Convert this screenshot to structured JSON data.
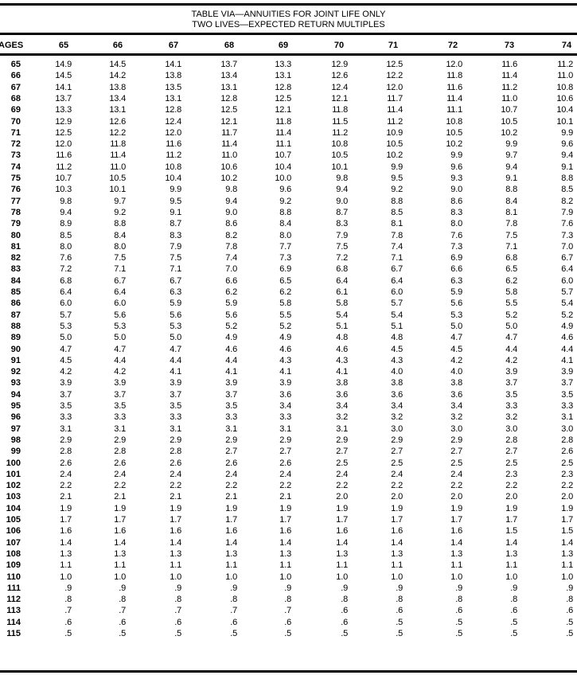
{
  "title": {
    "line1": "TABLE VIA—ANNUITIES FOR JOINT LIFE ONLY",
    "line2": "TWO LIVES—EXPECTED RETURN MULTIPLES"
  },
  "header": {
    "ages_label": "AGES",
    "columns": [
      "65",
      "66",
      "67",
      "68",
      "69",
      "70",
      "71",
      "72",
      "73",
      "74"
    ]
  },
  "rows": [
    {
      "age": "65",
      "values": [
        "14.9",
        "14.5",
        "14.1",
        "13.7",
        "13.3",
        "12.9",
        "12.5",
        "12.0",
        "11.6",
        "11.2"
      ]
    },
    {
      "age": "66",
      "values": [
        "14.5",
        "14.2",
        "13.8",
        "13.4",
        "13.1",
        "12.6",
        "12.2",
        "11.8",
        "11.4",
        "11.0"
      ]
    },
    {
      "age": "67",
      "values": [
        "14.1",
        "13.8",
        "13.5",
        "13.1",
        "12.8",
        "12.4",
        "12.0",
        "11.6",
        "11.2",
        "10.8"
      ]
    },
    {
      "age": "68",
      "values": [
        "13.7",
        "13.4",
        "13.1",
        "12.8",
        "12.5",
        "12.1",
        "11.7",
        "11.4",
        "11.0",
        "10.6"
      ]
    },
    {
      "age": "69",
      "values": [
        "13.3",
        "13.1",
        "12.8",
        "12.5",
        "12.1",
        "11.8",
        "11.4",
        "11.1",
        "10.7",
        "10.4"
      ]
    },
    {
      "age": "70",
      "values": [
        "12.9",
        "12.6",
        "12.4",
        "12.1",
        "11.8",
        "11.5",
        "11.2",
        "10.8",
        "10.5",
        "10.1"
      ]
    },
    {
      "age": "71",
      "values": [
        "12.5",
        "12.2",
        "12.0",
        "11.7",
        "11.4",
        "11.2",
        "10.9",
        "10.5",
        "10.2",
        "9.9"
      ]
    },
    {
      "age": "72",
      "values": [
        "12.0",
        "11.8",
        "11.6",
        "11.4",
        "11.1",
        "10.8",
        "10.5",
        "10.2",
        "9.9",
        "9.6"
      ]
    },
    {
      "age": "73",
      "values": [
        "11.6",
        "11.4",
        "11.2",
        "11.0",
        "10.7",
        "10.5",
        "10.2",
        "9.9",
        "9.7",
        "9.4"
      ]
    },
    {
      "age": "74",
      "values": [
        "11.2",
        "11.0",
        "10.8",
        "10.6",
        "10.4",
        "10.1",
        "9.9",
        "9.6",
        "9.4",
        "9.1"
      ]
    },
    {
      "age": "75",
      "values": [
        "10.7",
        "10.5",
        "10.4",
        "10.2",
        "10.0",
        "9.8",
        "9.5",
        "9.3",
        "9.1",
        "8.8"
      ]
    },
    {
      "age": "76",
      "values": [
        "10.3",
        "10.1",
        "9.9",
        "9.8",
        "9.6",
        "9.4",
        "9.2",
        "9.0",
        "8.8",
        "8.5"
      ]
    },
    {
      "age": "77",
      "values": [
        "9.8",
        "9.7",
        "9.5",
        "9.4",
        "9.2",
        "9.0",
        "8.8",
        "8.6",
        "8.4",
        "8.2"
      ]
    },
    {
      "age": "78",
      "values": [
        "9.4",
        "9.2",
        "9.1",
        "9.0",
        "8.8",
        "8.7",
        "8.5",
        "8.3",
        "8.1",
        "7.9"
      ]
    },
    {
      "age": "79",
      "values": [
        "8.9",
        "8.8",
        "8.7",
        "8.6",
        "8.4",
        "8.3",
        "8.1",
        "8.0",
        "7.8",
        "7.6"
      ]
    },
    {
      "age": "80",
      "values": [
        "8.5",
        "8.4",
        "8.3",
        "8.2",
        "8.0",
        "7.9",
        "7.8",
        "7.6",
        "7.5",
        "7.3"
      ]
    },
    {
      "age": "81",
      "values": [
        "8.0",
        "8.0",
        "7.9",
        "7.8",
        "7.7",
        "7.5",
        "7.4",
        "7.3",
        "7.1",
        "7.0"
      ]
    },
    {
      "age": "82",
      "values": [
        "7.6",
        "7.5",
        "7.5",
        "7.4",
        "7.3",
        "7.2",
        "7.1",
        "6.9",
        "6.8",
        "6.7"
      ]
    },
    {
      "age": "83",
      "values": [
        "7.2",
        "7.1",
        "7.1",
        "7.0",
        "6.9",
        "6.8",
        "6.7",
        "6.6",
        "6.5",
        "6.4"
      ]
    },
    {
      "age": "84",
      "values": [
        "6.8",
        "6.7",
        "6.7",
        "6.6",
        "6.5",
        "6.4",
        "6.4",
        "6.3",
        "6.2",
        "6.0"
      ]
    },
    {
      "age": "85",
      "values": [
        "6.4",
        "6.4",
        "6.3",
        "6.2",
        "6.2",
        "6.1",
        "6.0",
        "5.9",
        "5.8",
        "5.7"
      ]
    },
    {
      "age": "86",
      "values": [
        "6.0",
        "6.0",
        "5.9",
        "5.9",
        "5.8",
        "5.8",
        "5.7",
        "5.6",
        "5.5",
        "5.4"
      ]
    },
    {
      "age": "87",
      "values": [
        "5.7",
        "5.6",
        "5.6",
        "5.6",
        "5.5",
        "5.4",
        "5.4",
        "5.3",
        "5.2",
        "5.2"
      ]
    },
    {
      "age": "88",
      "values": [
        "5.3",
        "5.3",
        "5.3",
        "5.2",
        "5.2",
        "5.1",
        "5.1",
        "5.0",
        "5.0",
        "4.9"
      ]
    },
    {
      "age": "89",
      "values": [
        "5.0",
        "5.0",
        "5.0",
        "4.9",
        "4.9",
        "4.8",
        "4.8",
        "4.7",
        "4.7",
        "4.6"
      ]
    },
    {
      "age": "90",
      "values": [
        "4.7",
        "4.7",
        "4.7",
        "4.6",
        "4.6",
        "4.6",
        "4.5",
        "4.5",
        "4.4",
        "4.4"
      ]
    },
    {
      "age": "91",
      "values": [
        "4.5",
        "4.4",
        "4.4",
        "4.4",
        "4.3",
        "4.3",
        "4.3",
        "4.2",
        "4.2",
        "4.1"
      ]
    },
    {
      "age": "92",
      "values": [
        "4.2",
        "4.2",
        "4.1",
        "4.1",
        "4.1",
        "4.1",
        "4.0",
        "4.0",
        "3.9",
        "3.9"
      ]
    },
    {
      "age": "93",
      "values": [
        "3.9",
        "3.9",
        "3.9",
        "3.9",
        "3.9",
        "3.8",
        "3.8",
        "3.8",
        "3.7",
        "3.7"
      ]
    },
    {
      "age": "94",
      "values": [
        "3.7",
        "3.7",
        "3.7",
        "3.7",
        "3.6",
        "3.6",
        "3.6",
        "3.6",
        "3.5",
        "3.5"
      ]
    },
    {
      "age": "95",
      "values": [
        "3.5",
        "3.5",
        "3.5",
        "3.5",
        "3.4",
        "3.4",
        "3.4",
        "3.4",
        "3.3",
        "3.3"
      ]
    },
    {
      "age": "96",
      "values": [
        "3.3",
        "3.3",
        "3.3",
        "3.3",
        "3.3",
        "3.2",
        "3.2",
        "3.2",
        "3.2",
        "3.1"
      ]
    },
    {
      "age": "97",
      "values": [
        "3.1",
        "3.1",
        "3.1",
        "3.1",
        "3.1",
        "3.1",
        "3.0",
        "3.0",
        "3.0",
        "3.0"
      ]
    },
    {
      "age": "98",
      "values": [
        "2.9",
        "2.9",
        "2.9",
        "2.9",
        "2.9",
        "2.9",
        "2.9",
        "2.9",
        "2.8",
        "2.8"
      ]
    },
    {
      "age": "99",
      "values": [
        "2.8",
        "2.8",
        "2.8",
        "2.7",
        "2.7",
        "2.7",
        "2.7",
        "2.7",
        "2.7",
        "2.6"
      ]
    },
    {
      "age": "100",
      "values": [
        "2.6",
        "2.6",
        "2.6",
        "2.6",
        "2.6",
        "2.5",
        "2.5",
        "2.5",
        "2.5",
        "2.5"
      ]
    },
    {
      "age": "101",
      "values": [
        "2.4",
        "2.4",
        "2.4",
        "2.4",
        "2.4",
        "2.4",
        "2.4",
        "2.4",
        "2.3",
        "2.3"
      ]
    },
    {
      "age": "102",
      "values": [
        "2.2",
        "2.2",
        "2.2",
        "2.2",
        "2.2",
        "2.2",
        "2.2",
        "2.2",
        "2.2",
        "2.2"
      ]
    },
    {
      "age": "103",
      "values": [
        "2.1",
        "2.1",
        "2.1",
        "2.1",
        "2.1",
        "2.0",
        "2.0",
        "2.0",
        "2.0",
        "2.0"
      ]
    },
    {
      "age": "104",
      "values": [
        "1.9",
        "1.9",
        "1.9",
        "1.9",
        "1.9",
        "1.9",
        "1.9",
        "1.9",
        "1.9",
        "1.9"
      ]
    },
    {
      "age": "105",
      "values": [
        "1.7",
        "1.7",
        "1.7",
        "1.7",
        "1.7",
        "1.7",
        "1.7",
        "1.7",
        "1.7",
        "1.7"
      ]
    },
    {
      "age": "106",
      "values": [
        "1.6",
        "1.6",
        "1.6",
        "1.6",
        "1.6",
        "1.6",
        "1.6",
        "1.6",
        "1.5",
        "1.5"
      ]
    },
    {
      "age": "107",
      "values": [
        "1.4",
        "1.4",
        "1.4",
        "1.4",
        "1.4",
        "1.4",
        "1.4",
        "1.4",
        "1.4",
        "1.4"
      ]
    },
    {
      "age": "108",
      "values": [
        "1.3",
        "1.3",
        "1.3",
        "1.3",
        "1.3",
        "1.3",
        "1.3",
        "1.3",
        "1.3",
        "1.3"
      ]
    },
    {
      "age": "109",
      "values": [
        "1.1",
        "1.1",
        "1.1",
        "1.1",
        "1.1",
        "1.1",
        "1.1",
        "1.1",
        "1.1",
        "1.1"
      ]
    },
    {
      "age": "110",
      "values": [
        "1.0",
        "1.0",
        "1.0",
        "1.0",
        "1.0",
        "1.0",
        "1.0",
        "1.0",
        "1.0",
        "1.0"
      ]
    },
    {
      "age": "111",
      "values": [
        ".9",
        ".9",
        ".9",
        ".9",
        ".9",
        ".9",
        ".9",
        ".9",
        ".9",
        ".9"
      ]
    },
    {
      "age": "112",
      "values": [
        ".8",
        ".8",
        ".8",
        ".8",
        ".8",
        ".8",
        ".8",
        ".8",
        ".8",
        ".8"
      ]
    },
    {
      "age": "113",
      "values": [
        ".7",
        ".7",
        ".7",
        ".7",
        ".7",
        ".6",
        ".6",
        ".6",
        ".6",
        ".6"
      ]
    },
    {
      "age": "114",
      "values": [
        ".6",
        ".6",
        ".6",
        ".6",
        ".6",
        ".6",
        ".5",
        ".5",
        ".5",
        ".5"
      ]
    },
    {
      "age": "115",
      "values": [
        ".5",
        ".5",
        ".5",
        ".5",
        ".5",
        ".5",
        ".5",
        ".5",
        ".5",
        ".5"
      ]
    }
  ]
}
